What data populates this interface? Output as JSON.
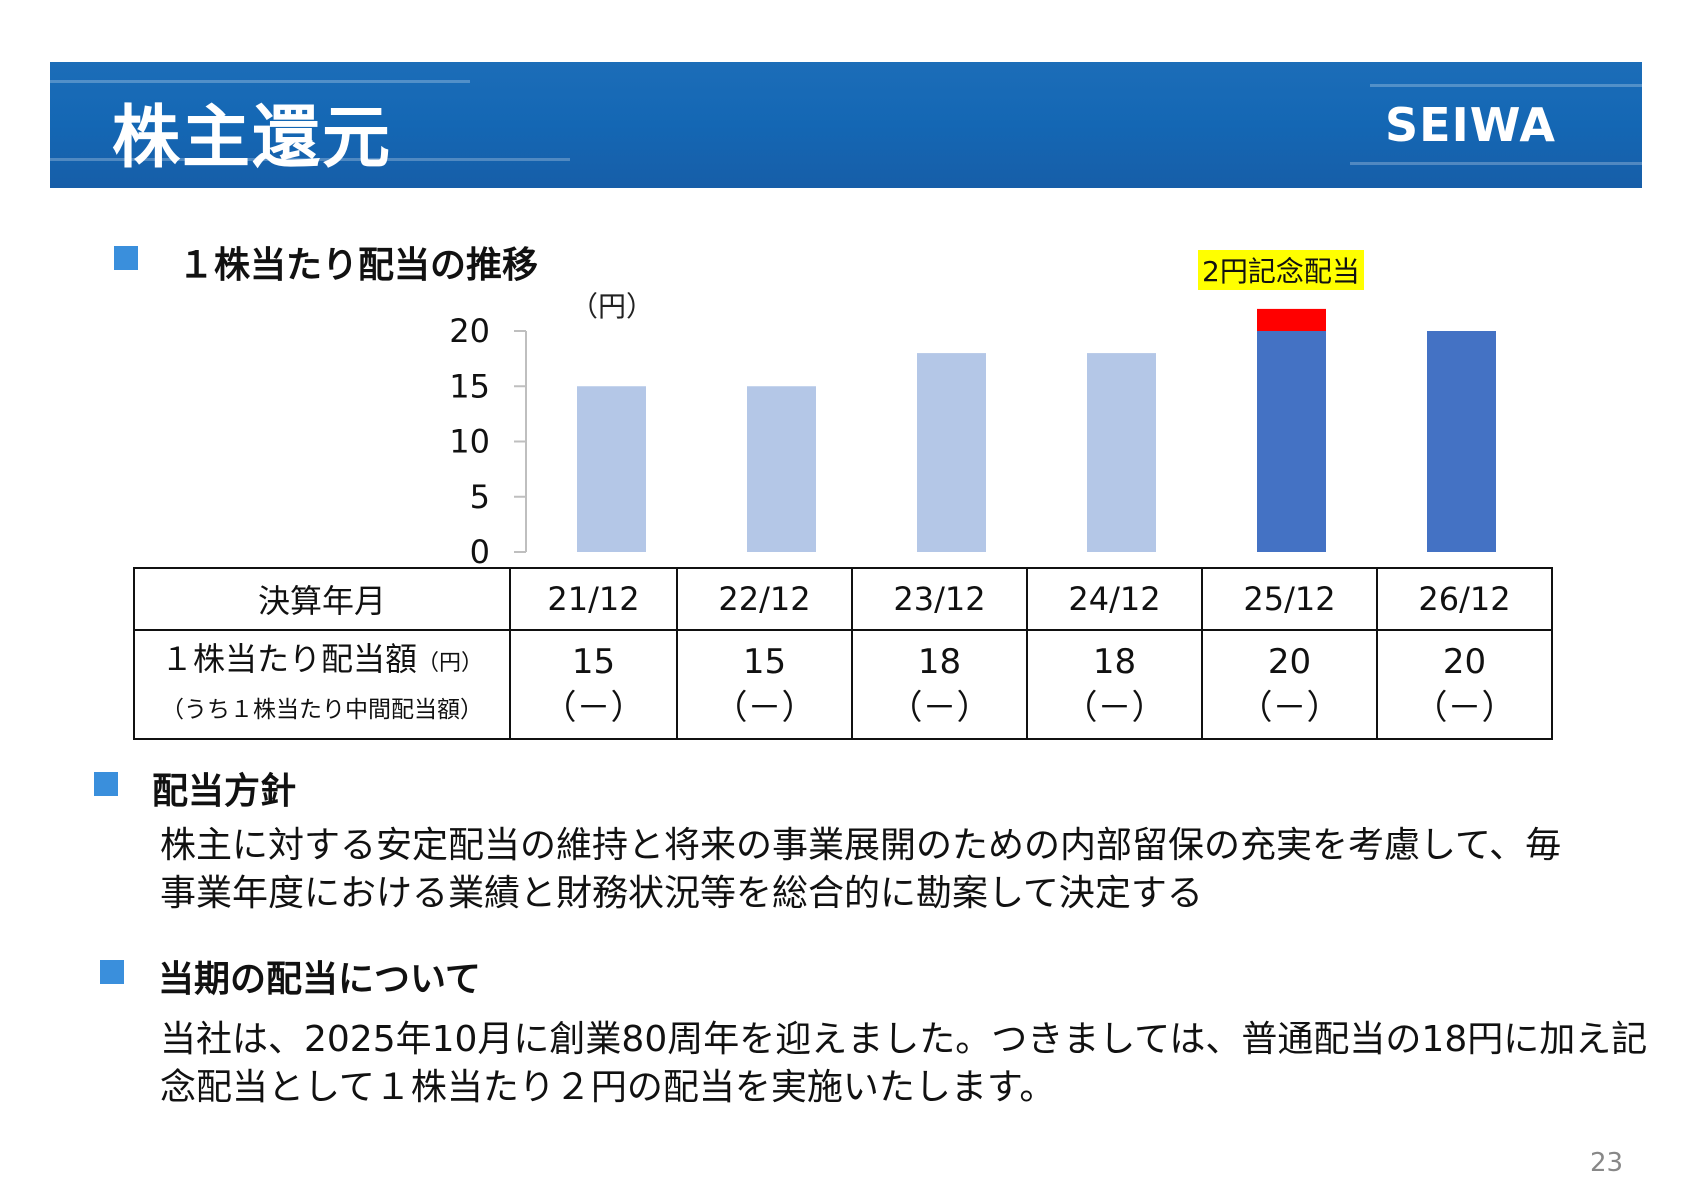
{
  "header": {
    "title": "株主還元",
    "logo": "SEIWA"
  },
  "section1": {
    "heading": "１株当たり配当の推移"
  },
  "chart_data": {
    "type": "bar",
    "unit_label": "（円）",
    "categories": [
      "21/12",
      "22/12",
      "23/12",
      "24/12",
      "25/12",
      "26/12"
    ],
    "series": [
      {
        "values": [
          15,
          15,
          18,
          18,
          20,
          20
        ]
      },
      {
        "values": [
          0,
          0,
          0,
          0,
          2,
          0
        ]
      }
    ],
    "colors": [
      "#b4c7e7",
      "#b4c7e7",
      "#b4c7e7",
      "#b4c7e7",
      "#4472c4",
      "#4472c4"
    ],
    "extra_color": "#ff0000",
    "annotation": "2円記念配当",
    "annotation_bg": "#ffff00",
    "ylim": [
      0,
      20
    ],
    "yticks": [
      0,
      5,
      10,
      15,
      20
    ],
    "grid": false
  },
  "table": {
    "header_label": "決算年月",
    "row_label_main": "１株当たり配当額",
    "row_label_unit": "（円）",
    "row_label_sub": "（うち１株当たり中間配当額）",
    "columns": [
      {
        "period": "21/12",
        "dividend": "15",
        "interim": "（－）"
      },
      {
        "period": "22/12",
        "dividend": "15",
        "interim": "（－）"
      },
      {
        "period": "23/12",
        "dividend": "18",
        "interim": "（－）"
      },
      {
        "period": "24/12",
        "dividend": "18",
        "interim": "（－）"
      },
      {
        "period": "25/12",
        "dividend": "20",
        "interim": "（－）"
      },
      {
        "period": "26/12",
        "dividend": "20",
        "interim": "（－）"
      }
    ]
  },
  "section2": {
    "heading": "配当方針",
    "line1": "株主に対する安定配当の維持と将来の事業展開のための内部留保の充実を考慮して、毎",
    "line2": "事業年度における業績と財務状況等を総合的に勘案して決定する"
  },
  "section3": {
    "heading": "当期の配当について",
    "line1": "当社は、2025年10月に創業80周年を迎えました。つきましては、普通配当の18円に加え記",
    "line2": "念配当として１株当たり２円の配当を実施いたします。"
  },
  "page_number": "23",
  "accent_color": "#1467b4",
  "bullet_color": "#3a8fdc"
}
